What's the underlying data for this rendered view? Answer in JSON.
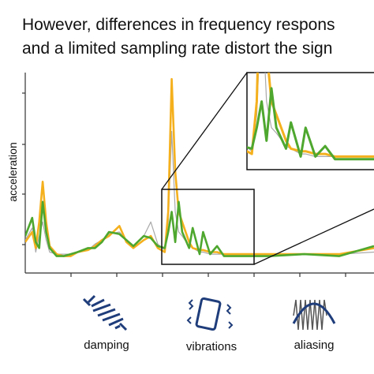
{
  "chart_data": {
    "type": "line",
    "title_lines": [
      "However, differences in frequency respons",
      "and a limited sampling rate distort the sign"
    ],
    "y_label": "acceleration",
    "x": [
      0,
      2,
      3,
      4,
      5,
      6,
      7,
      9,
      11,
      13,
      15,
      18,
      20,
      22,
      24,
      27,
      29,
      31,
      34,
      36,
      38,
      40,
      41,
      42,
      43,
      44,
      45,
      47,
      48,
      50,
      51,
      53,
      55,
      57,
      60,
      65,
      70,
      80,
      90,
      100
    ],
    "series": [
      {
        "color": "#a9a9a9",
        "values": [
          1.6,
          2.2,
          1.0,
          1.8,
          2.5,
          1.6,
          1.0,
          0.9,
          0.9,
          0.9,
          1.0,
          1.1,
          1.4,
          1.6,
          1.9,
          2.0,
          1.6,
          1.3,
          1.8,
          2.5,
          1.4,
          1.1,
          2.5,
          7.0,
          3.0,
          2.0,
          1.8,
          1.3,
          1.2,
          1.0,
          1.0,
          0.9,
          0.9,
          0.9,
          0.9,
          0.9,
          0.9,
          0.9,
          0.9,
          1.0
        ]
      },
      {
        "color": "#f5b01e",
        "values": [
          1.5,
          2.0,
          1.2,
          2.5,
          4.5,
          2.5,
          1.3,
          0.9,
          0.8,
          0.8,
          1.0,
          1.1,
          1.3,
          1.6,
          1.8,
          2.3,
          1.5,
          1.2,
          1.6,
          1.8,
          1.2,
          1.0,
          3.0,
          9.6,
          5.0,
          3.0,
          2.5,
          1.5,
          1.2,
          1.1,
          1.1,
          1.0,
          1.0,
          0.9,
          0.9,
          0.9,
          0.9,
          0.9,
          0.9,
          1.2
        ]
      },
      {
        "color": "#4ea72e",
        "values": [
          1.8,
          2.7,
          1.5,
          1.2,
          3.5,
          2.0,
          1.2,
          0.8,
          0.8,
          0.9,
          1.0,
          1.2,
          1.2,
          1.5,
          2.0,
          1.9,
          1.6,
          1.3,
          1.8,
          1.7,
          1.3,
          1.2,
          2.0,
          3.0,
          1.5,
          3.5,
          2.0,
          1.2,
          2.2,
          0.9,
          2.0,
          0.9,
          1.3,
          0.8,
          0.8,
          0.8,
          0.8,
          0.9,
          0.8,
          1.3
        ]
      }
    ],
    "xlim": [
      0,
      100
    ],
    "ylim": [
      0,
      10
    ],
    "inset": {
      "xlim": [
        39,
        65
      ],
      "ylim": [
        0.4,
        4.1
      ]
    },
    "icons": [
      "damping",
      "vibrations",
      "aliasing"
    ]
  }
}
